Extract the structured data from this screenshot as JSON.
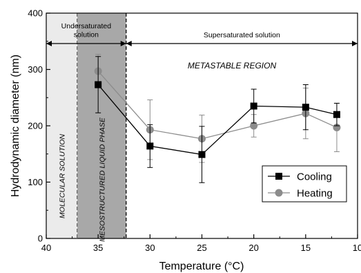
{
  "chart_data": {
    "type": "line",
    "xlabel": "Temperature (°C)",
    "ylabel": "Hydrodynamic diameter (nm)",
    "xlim": [
      40,
      10
    ],
    "ylim": [
      0,
      400
    ],
    "x_ticks": [
      40,
      35,
      30,
      25,
      20,
      15,
      10
    ],
    "y_ticks": [
      0,
      100,
      200,
      300,
      400
    ],
    "grid": false,
    "legend_position": "lower-right",
    "regions": [
      {
        "from": 40,
        "to": 37,
        "fill": "#ebebeb",
        "label": "MOLECULAR SOLUTION"
      },
      {
        "from": 37,
        "to": 32.3,
        "fill": "#a8a8a8",
        "label": "MESOSTRUCTURED LIQUID PHASE"
      }
    ],
    "ranges": [
      {
        "from": 40,
        "to": 32.3,
        "y": 346,
        "label": "Undersaturated solution"
      },
      {
        "from": 32.3,
        "to": 10,
        "y": 346,
        "label": "Supersaturated solution"
      }
    ],
    "region_annotation": "METASTABLE REGION",
    "series": [
      {
        "name": "Cooling",
        "color": "#000000",
        "marker": "square",
        "x": [
          35,
          30,
          25,
          20,
          15,
          12
        ],
        "y": [
          273,
          164,
          149,
          235,
          233,
          220
        ],
        "err": [
          50,
          38,
          50,
          30,
          40,
          20
        ]
      },
      {
        "name": "Heating",
        "color": "#8c8c8c",
        "marker": "circle",
        "x": [
          35,
          30,
          25,
          20,
          15,
          12
        ],
        "y": [
          297,
          193,
          177,
          200,
          222,
          197
        ],
        "err": [
          30,
          53,
          42,
          20,
          45,
          43
        ]
      }
    ]
  }
}
